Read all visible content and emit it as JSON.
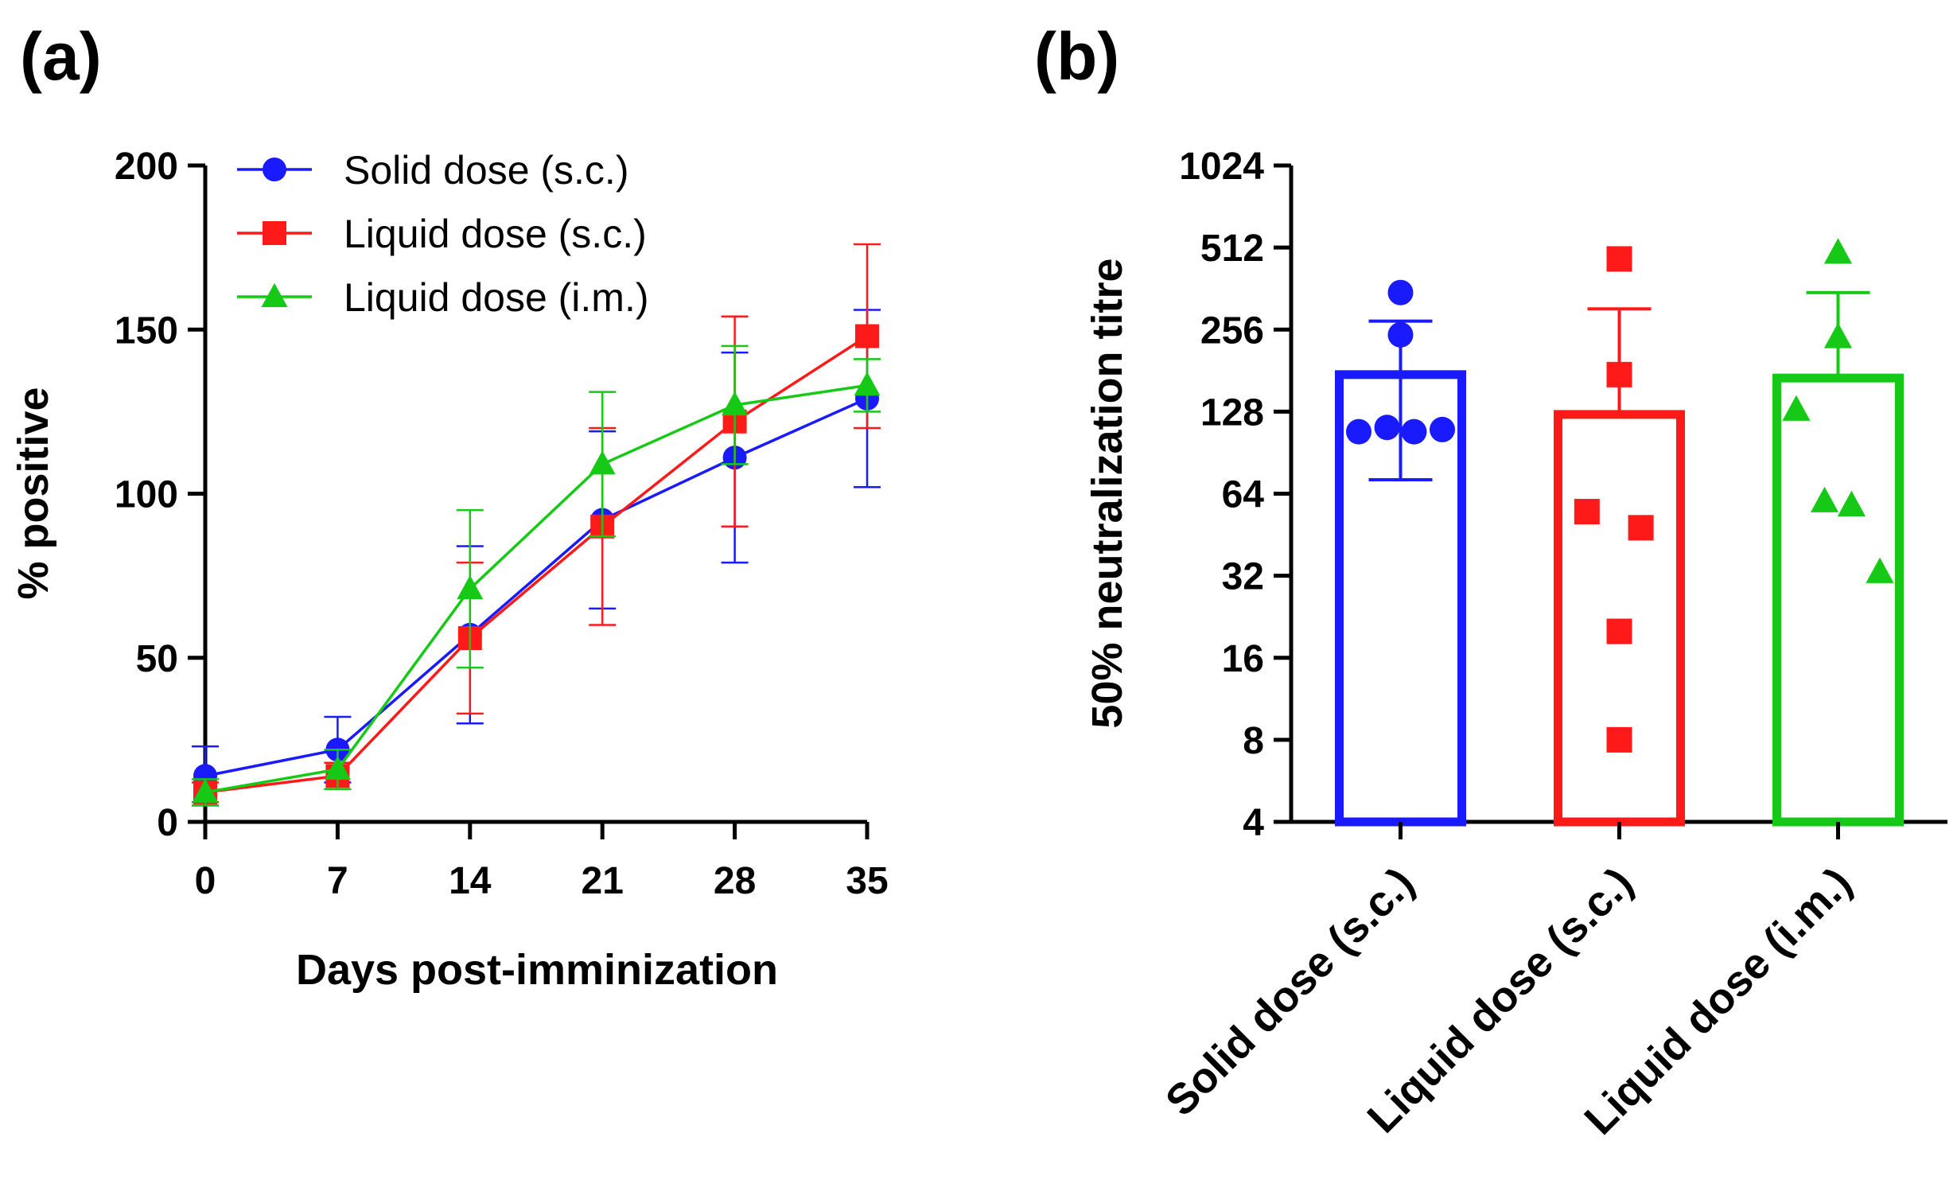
{
  "chart_data": [
    {
      "panel": "(a)",
      "type": "line",
      "xlabel": "Days post-imminization",
      "ylabel": "% positive",
      "x": [
        0,
        7,
        14,
        21,
        28,
        35
      ],
      "xticks": [
        "0",
        "7",
        "14",
        "21",
        "28",
        "35"
      ],
      "yticks": [
        "0",
        "50",
        "100",
        "150",
        "200"
      ],
      "ylim": [
        0,
        200
      ],
      "xlim": [
        0,
        35
      ],
      "legend_position": "top-left",
      "series": [
        {
          "name": "Solid dose (s.c.)",
          "color": "#1a1aff",
          "marker": "circle",
          "values": [
            14,
            22,
            57,
            92,
            111,
            129
          ],
          "error": [
            9,
            10,
            27,
            27,
            32,
            27
          ]
        },
        {
          "name": "Liquid dose (s.c.)",
          "color": "#ff1a1a",
          "marker": "square",
          "values": [
            9,
            14,
            56,
            90,
            122,
            148
          ],
          "error": [
            3,
            4,
            23,
            30,
            32,
            28
          ]
        },
        {
          "name": "Liquid dose (i.m.)",
          "color": "#16c916",
          "marker": "triangle",
          "values": [
            9,
            16,
            71,
            109,
            127,
            133
          ],
          "error": [
            4,
            6,
            24,
            22,
            18,
            8
          ]
        }
      ]
    },
    {
      "panel": "(b)",
      "type": "bar",
      "ylabel": "50% neutralization titre",
      "yscale": "log2",
      "ylim": [
        4,
        1024
      ],
      "yticks": [
        "1024",
        "512",
        "256",
        "128",
        "64",
        "32",
        "16",
        "8",
        "4"
      ],
      "categories": [
        "Solid dose (s.c.)",
        "Liquid dose (s.c.)",
        "Liquid dose (i.m.)"
      ],
      "series": [
        {
          "name": "Solid dose (s.c.)",
          "color": "#1a1aff",
          "marker": "circle",
          "mean": 175,
          "sd_upper": 275,
          "sd_lower": 72,
          "points": [
            350,
            245,
            108,
            112,
            108,
            110
          ]
        },
        {
          "name": "Liquid dose (s.c.)",
          "color": "#ff1a1a",
          "marker": "square",
          "mean": 125,
          "sd_upper": 305,
          "sd_lower": 125,
          "points": [
            465,
            175,
            55,
            48,
            20,
            8
          ]
        },
        {
          "name": "Liquid dose (i.m.)",
          "color": "#16c916",
          "marker": "triangle",
          "mean": 170,
          "sd_upper": 350,
          "sd_lower": 170,
          "points": [
            490,
            240,
            130,
            60,
            58,
            33
          ]
        }
      ]
    }
  ]
}
